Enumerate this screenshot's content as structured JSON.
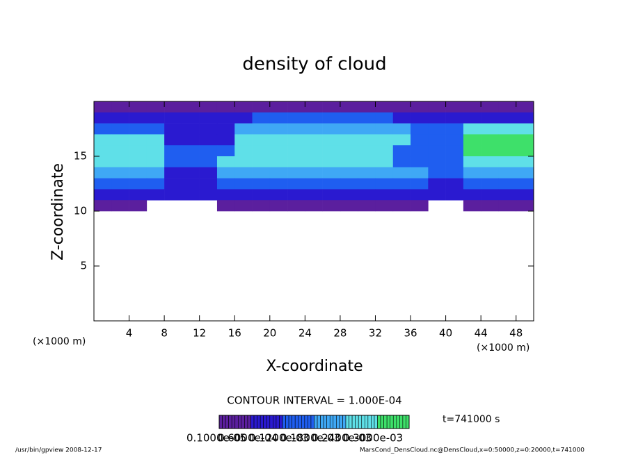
{
  "chart_data": {
    "type": "contour",
    "title": "density of cloud",
    "x_label": "X-coordinate",
    "y_label": "Z-coordinate",
    "x_unit_left": "(×1000 m)",
    "x_unit_right": "(×1000 m)",
    "xlim": [
      0,
      50
    ],
    "ylim": [
      0,
      20
    ],
    "xticks": [
      4,
      8,
      12,
      16,
      20,
      24,
      28,
      32,
      36,
      40,
      44,
      48
    ],
    "yticks": [
      5,
      10,
      15
    ],
    "x": [
      1,
      3,
      5,
      7,
      9,
      11,
      13,
      15,
      17,
      19,
      21,
      23,
      25,
      27,
      29,
      31,
      33,
      35,
      37,
      39,
      41,
      43,
      45,
      47,
      49
    ],
    "z": [
      19.5,
      18.5,
      17.5,
      16.5,
      15.5,
      14.5,
      13.5,
      12.5,
      11.5,
      10.5
    ],
    "values": [
      [
        4e-05,
        4e-05,
        4e-05,
        4e-05,
        4e-05,
        4e-05,
        4e-05,
        4e-05,
        4e-05,
        4e-05,
        4e-05,
        4e-05,
        4e-05,
        4e-05,
        4e-05,
        4e-05,
        4e-05,
        4e-05,
        4e-05,
        4e-05,
        4e-05,
        4e-05,
        4e-05,
        4e-05,
        4e-05
      ],
      [
        8e-05,
        8e-05,
        8e-05,
        8e-05,
        8e-05,
        8e-05,
        8e-05,
        8e-05,
        8e-05,
        0.00012,
        0.00012,
        0.00012,
        0.00012,
        0.00012,
        0.00012,
        0.00012,
        0.00012,
        8e-05,
        8e-05,
        8e-05,
        8e-05,
        8e-05,
        8e-05,
        8e-05,
        8e-05
      ],
      [
        0.00014,
        0.00014,
        0.00014,
        0.00014,
        8e-05,
        8e-05,
        8e-05,
        8e-05,
        0.00018,
        0.00018,
        0.00018,
        0.00018,
        0.00018,
        0.00018,
        0.00018,
        0.00018,
        0.00018,
        0.00018,
        0.0001,
        0.0001,
        0.0001,
        0.00022,
        0.00022,
        0.00022,
        0.00022
      ],
      [
        0.0002,
        0.0002,
        0.0002,
        0.0002,
        8e-05,
        8e-05,
        8e-05,
        8e-05,
        0.00022,
        0.00022,
        0.00022,
        0.00022,
        0.00022,
        0.00022,
        0.00022,
        0.00022,
        0.00022,
        0.00022,
        0.00012,
        0.00012,
        0.00012,
        0.00026,
        0.00026,
        0.00026,
        0.00026
      ],
      [
        0.00024,
        0.00024,
        0.00024,
        0.00024,
        0.0001,
        0.0001,
        0.0001,
        0.00014,
        0.00024,
        0.00024,
        0.00024,
        0.00024,
        0.00024,
        0.00024,
        0.00024,
        0.00024,
        0.00024,
        0.00012,
        0.00012,
        0.00012,
        0.00012,
        0.00028,
        0.00028,
        0.00028,
        0.00028
      ],
      [
        0.0002,
        0.0002,
        0.0002,
        0.0002,
        0.00012,
        0.00012,
        0.00012,
        0.00022,
        0.00022,
        0.00022,
        0.00022,
        0.00022,
        0.00022,
        0.00022,
        0.00022,
        0.00022,
        0.00022,
        0.00014,
        0.00014,
        0.00014,
        0.00014,
        0.00024,
        0.00024,
        0.00024,
        0.00024
      ],
      [
        0.00016,
        0.00016,
        0.00016,
        0.00016,
        8e-05,
        8e-05,
        8e-05,
        0.00018,
        0.00018,
        0.00018,
        0.00018,
        0.00018,
        0.00018,
        0.00018,
        0.00018,
        0.00018,
        0.00018,
        0.00018,
        0.00018,
        0.00012,
        0.00012,
        0.00016,
        0.00016,
        0.00016,
        0.00016
      ],
      [
        0.00012,
        0.00012,
        0.00012,
        0.00012,
        6e-05,
        6e-05,
        6e-05,
        0.00012,
        0.00012,
        0.00012,
        0.00012,
        0.00012,
        0.00012,
        0.00012,
        0.00012,
        0.00012,
        0.00012,
        0.00012,
        0.00012,
        8e-05,
        8e-05,
        0.0001,
        0.0001,
        0.0001,
        0.0001
      ],
      [
        6e-05,
        6e-05,
        6e-05,
        6e-05,
        6e-05,
        6e-05,
        6e-05,
        6e-05,
        6e-05,
        6e-05,
        6e-05,
        6e-05,
        6e-05,
        6e-05,
        6e-05,
        6e-05,
        6e-05,
        6e-05,
        6e-05,
        6e-05,
        6e-05,
        6e-05,
        6e-05,
        6e-05,
        6e-05
      ],
      [
        3e-05,
        3e-05,
        3e-05,
        0,
        0,
        0,
        0,
        2e-05,
        2e-05,
        2e-05,
        2e-05,
        2e-05,
        2e-05,
        2e-05,
        2e-05,
        2e-05,
        2e-05,
        2e-05,
        2e-05,
        0,
        0,
        3e-05,
        3e-05,
        3e-05,
        2e-05
      ]
    ],
    "colorbar": {
      "lim": [
        0,
        0.0003
      ],
      "colors": [
        "#5b1f9e",
        "#2a1ad0",
        "#1f5ef0",
        "#3fa8f5",
        "#5fe0e8",
        "#3ee06a"
      ],
      "labels": [
        "0.1000e-05",
        "0.6000e-04",
        "0.1200e-03",
        "0.1800e-03",
        "0.2400e-03",
        "0.3000e-03"
      ]
    },
    "contour_interval": "CONTOUR INTERVAL = 1.000E-04",
    "time_label": "t=741000 s",
    "footer_left": "/usr/bin/gpview  2008-12-17",
    "footer_right": "MarsCond_DensCloud.nc@DensCloud,x=0:50000,z=0:20000,t=741000"
  }
}
